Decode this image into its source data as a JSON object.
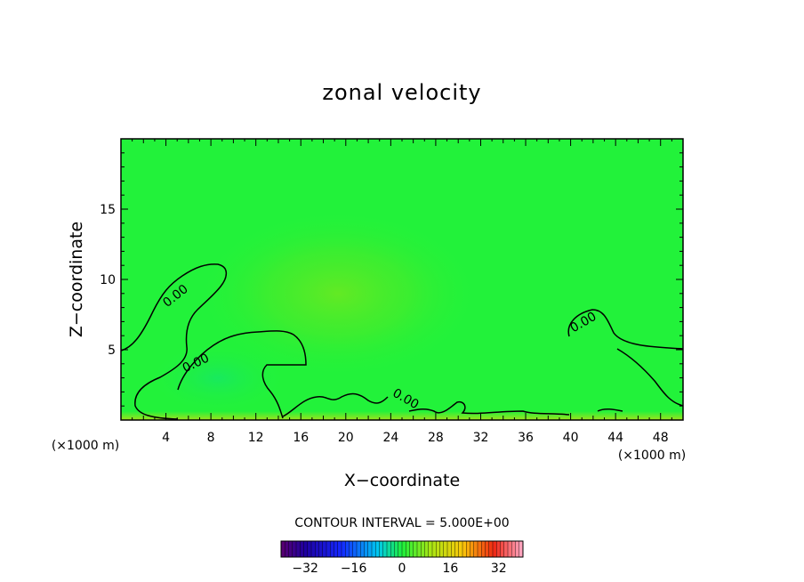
{
  "chart_data": {
    "type": "heatmap",
    "title": "zonal velocity",
    "xlabel": "X−coordinate",
    "ylabel": "Z−coordinate",
    "x_unit_left": "(×1000 m)",
    "x_unit_right": "(×1000 m)",
    "xlim": [
      0,
      50
    ],
    "ylim": [
      0,
      20
    ],
    "x_ticks": [
      4,
      8,
      12,
      16,
      20,
      24,
      28,
      32,
      36,
      40,
      44,
      48
    ],
    "y_ticks": [
      5,
      10,
      15
    ],
    "contour_interval_text": "CONTOUR INTERVAL = 5.000E+00",
    "contour_level": "0.00",
    "contour_labels": [
      {
        "text": "0.00",
        "x": 4.8,
        "y": 9.6
      },
      {
        "text": "0.00",
        "x": 6.7,
        "y": 4.0
      },
      {
        "text": "0.00",
        "x": 25.0,
        "y": 1.4
      },
      {
        "text": "0.00",
        "x": 41.0,
        "y": 6.6
      }
    ],
    "field_features": [
      {
        "name": "weak positive jet",
        "x": 19,
        "y": 8.5,
        "value": 3
      },
      {
        "name": "weak negative low-level pocket",
        "x": 10,
        "y": 2.5,
        "value": -2
      },
      {
        "name": "surface layer",
        "x": 25,
        "y": 0.2,
        "value": 6
      }
    ],
    "colorbar": {
      "min": -40,
      "max": 40,
      "ticks": [
        -32,
        -16,
        0,
        16,
        32
      ],
      "tick_labels": [
        "−32",
        "−16",
        "0",
        "16",
        "32"
      ],
      "colormap": "rainbow (purple→blue→cyan→green→yellow→red→pink)"
    },
    "colors": {
      "background": "#ffffff",
      "field_base": "#22f23a",
      "contour_line": "#000000"
    }
  }
}
